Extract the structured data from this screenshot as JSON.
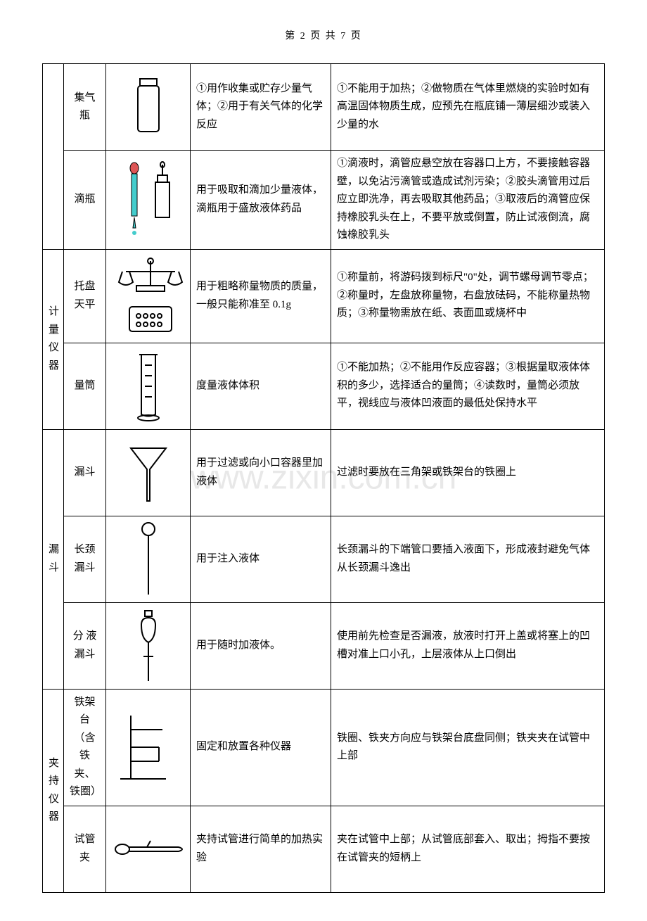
{
  "page_header": "第 2 页 共 7 页",
  "watermark": "www.zixin.com.cn",
  "categories": [
    {
      "label_chars": [
        "",
        "",
        ""
      ],
      "label_hidden": true,
      "rows": [
        {
          "name": "集气瓶",
          "icon": "bottle",
          "use": "①用作收集或贮存少量气体；②用于有关气体的化学反应",
          "note": "①不能用于加热；②做物质在气体里燃烧的实验时如有高温固体物质生成，应预先在瓶底铺一薄层细沙或装入少量的水"
        },
        {
          "name": "滴瓶",
          "icon": "dropper",
          "use": "用于吸取和滴加少量液体，滴瓶用于盛放液体药品",
          "note": "①滴液时，滴管应悬空放在容器口上方，不要接触容器壁，以免沾污滴管或造成试剂污染；②胶头滴管用过后应立即洗净，再去吸取其他药品；③取液后的滴管应保持橡胶乳头在上，不要平放或倒置，防止试液倒流，腐蚀橡胶乳头"
        }
      ]
    },
    {
      "label_chars": [
        "计",
        "量",
        "仪",
        "器"
      ],
      "rows": [
        {
          "name": "托盘天平",
          "icon": "balance",
          "use": "用于粗略称量物质的质量，一般只能称准至 0.1g",
          "note": "①称量前，将游码拨到标尺\"0\"处，调节螺母调节零点；②称量时，左盘放称量物，右盘放砝码，不能称量热物质；③称量物需放在纸、表面皿或烧杯中"
        },
        {
          "name": "量筒",
          "icon": "cylinder",
          "use": "度量液体体积",
          "note": "①不能加热；②不能用作反应容器；③根据量取液体体积的多少，选择适合的量筒；④读数时，量筒必须放平，视线应与液体凹液面的最低处保持水平"
        }
      ]
    },
    {
      "label_chars": [
        "漏",
        "斗"
      ],
      "rows": [
        {
          "name": "漏斗",
          "icon": "funnel",
          "use": "用于过滤或向小口容器里加液体",
          "note": "过滤时要放在三角架或铁架台的铁圈上"
        },
        {
          "name": "长颈漏斗",
          "icon": "long-funnel",
          "use": "用于注入液体",
          "note": "长颈漏斗的下端管口要插入液面下，形成液封避免气体从长颈漏斗逸出"
        },
        {
          "name": "分 液漏斗",
          "icon": "sep-funnel",
          "use": "用于随时加液体。",
          "note": "使用前先检查是否漏液，放液时打开上盖或将塞上的凹槽对准上口小孔，上层液体从上口倒出"
        }
      ]
    },
    {
      "label_chars": [
        "夹",
        "持",
        "仪",
        "器"
      ],
      "rows": [
        {
          "name": "铁架台（含铁夹、铁圈）",
          "icon": "stand",
          "use": "固定和放置各种仪器",
          "note": "铁圈、铁夹方向应与铁架台底盘同侧；铁夹夹在试管中上部"
        },
        {
          "name": "试管夹",
          "icon": "clamp",
          "use": "夹持试管进行简单的加热实验",
          "note": "夹在试管中上部；从试管底部套入、取出；拇指不要按在试管夹的短柄上"
        }
      ]
    }
  ]
}
